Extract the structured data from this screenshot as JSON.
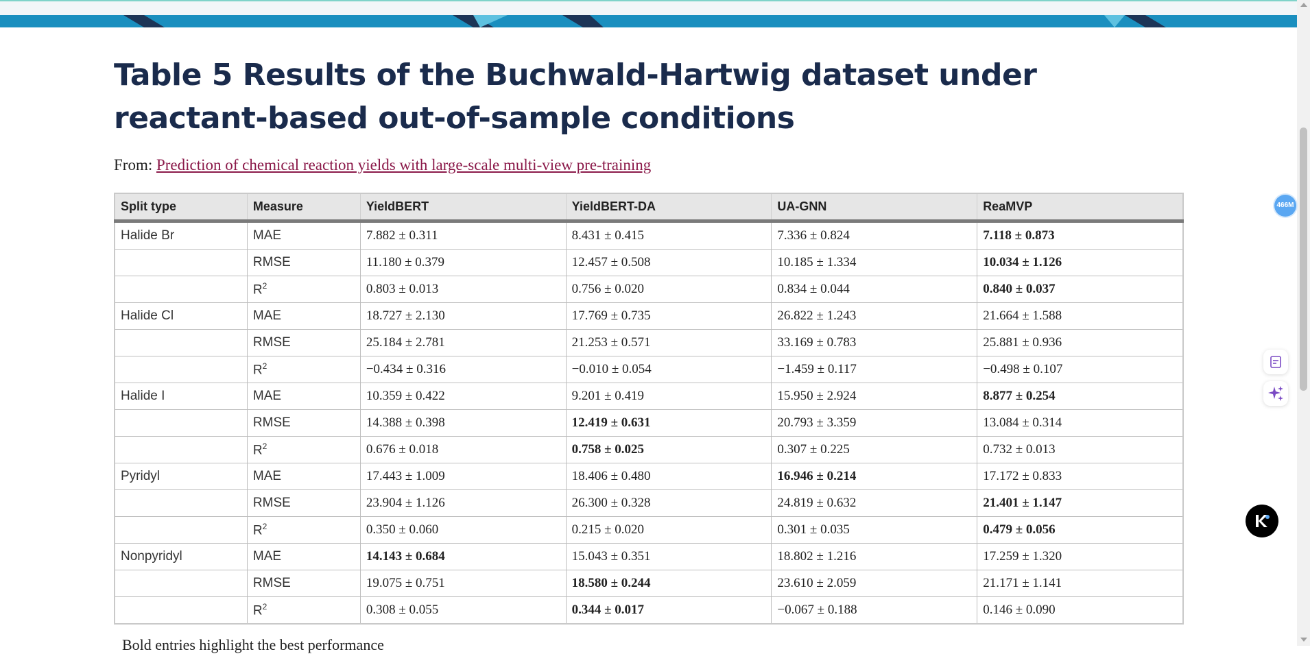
{
  "page": {
    "title": "Table 5 Results of the Buchwald-Hartwig dataset under reactant-based out-of-sample conditions",
    "from_label": "From:",
    "from_link": "Prediction of chemical reaction yields with large-scale multi-view pre-training",
    "footnote": "Bold entries highlight the best performance"
  },
  "table": {
    "headers": [
      "Split type",
      "Measure",
      "YieldBERT",
      "YieldBERT-DA",
      "UA-GNN",
      "ReaMVP"
    ],
    "rows": [
      {
        "split": "Halide Br",
        "measure": "MAE",
        "sup": "",
        "values": [
          "7.882 ± 0.311",
          "8.431 ± 0.415",
          "7.336 ± 0.824",
          "7.118 ± 0.873"
        ]
      },
      {
        "split": "",
        "measure": "RMSE",
        "sup": "",
        "values": [
          "11.180 ± 0.379",
          "12.457 ± 0.508",
          "10.185 ± 1.334",
          "10.034 ± 1.126"
        ]
      },
      {
        "split": "",
        "measure": "R",
        "sup": "2",
        "values": [
          "0.803 ± 0.013",
          "0.756 ± 0.020",
          "0.834 ± 0.044",
          "0.840 ± 0.037"
        ]
      },
      {
        "split": "Halide Cl",
        "measure": "MAE",
        "sup": "",
        "values": [
          "18.727 ± 2.130",
          "17.769 ± 0.735",
          "26.822 ± 1.243",
          "21.664 ± 1.588"
        ]
      },
      {
        "split": "",
        "measure": "RMSE",
        "sup": "",
        "values": [
          "25.184 ± 2.781",
          "21.253 ± 0.571",
          "33.169 ± 0.783",
          "25.881 ± 0.936"
        ]
      },
      {
        "split": "",
        "measure": "R",
        "sup": "2",
        "values": [
          "−0.434 ± 0.316",
          "−0.010 ± 0.054",
          "−1.459 ± 0.117",
          "−0.498 ± 0.107"
        ]
      },
      {
        "split": "Halide I",
        "measure": "MAE",
        "sup": "",
        "values": [
          "10.359 ± 0.422",
          "9.201 ± 0.419",
          "15.950 ± 2.924",
          "8.877 ± 0.254"
        ]
      },
      {
        "split": "",
        "measure": "RMSE",
        "sup": "",
        "values": [
          "14.388 ± 0.398",
          "12.419 ± 0.631",
          "20.793 ± 3.359",
          "13.084 ± 0.314"
        ]
      },
      {
        "split": "",
        "measure": "R",
        "sup": "2",
        "values": [
          "0.676 ± 0.018",
          "0.758 ± 0.025",
          "0.307 ± 0.225",
          "0.732 ± 0.013"
        ]
      },
      {
        "split": "Pyridyl",
        "measure": "MAE",
        "sup": "",
        "values": [
          "17.443 ± 1.009",
          "18.406 ± 0.480",
          "16.946 ± 0.214",
          "17.172 ± 0.833"
        ]
      },
      {
        "split": "",
        "measure": "RMSE",
        "sup": "",
        "values": [
          "23.904 ± 1.126",
          "26.300 ± 0.328",
          "24.819 ± 0.632",
          "21.401 ± 1.147"
        ]
      },
      {
        "split": "",
        "measure": "R",
        "sup": "2",
        "values": [
          "0.350 ± 0.060",
          "0.215 ± 0.020",
          "0.301 ± 0.035",
          "0.479 ± 0.056"
        ]
      },
      {
        "split": "Nonpyridyl",
        "measure": "MAE",
        "sup": "",
        "values": [
          "14.143 ± 0.684",
          "15.043 ± 0.351",
          "18.802 ± 1.216",
          "17.259 ± 1.320"
        ]
      },
      {
        "split": "",
        "measure": "RMSE",
        "sup": "",
        "values": [
          "19.075 ± 0.751",
          "18.580 ± 0.244",
          "23.610 ± 2.059",
          "21.171 ± 1.141"
        ]
      },
      {
        "split": "",
        "measure": "R",
        "sup": "2",
        "values": [
          "0.308 ± 0.055",
          "0.344 ± 0.017",
          "−0.067 ± 0.188",
          "0.146 ± 0.090"
        ]
      }
    ],
    "bold": [
      [
        0,
        3
      ],
      [
        1,
        3
      ],
      [
        2,
        3
      ],
      [
        6,
        3
      ],
      [
        7,
        1
      ],
      [
        8,
        1
      ],
      [
        9,
        2
      ],
      [
        10,
        3
      ],
      [
        11,
        3
      ],
      [
        12,
        0
      ],
      [
        13,
        1
      ],
      [
        14,
        1
      ]
    ]
  },
  "widgets": {
    "badge_label": "466M",
    "notes_icon": "document-icon",
    "ai_icon": "sparkle-icon",
    "assistant_icon": "k-logo-icon"
  },
  "colors": {
    "title": "#1a2b4c",
    "link": "#8b1a4a",
    "banner": "#1a8fbf",
    "header_bg": "#e6e6e6",
    "badge": "#5aa7f2",
    "sparkle": "#7b4bc4"
  }
}
